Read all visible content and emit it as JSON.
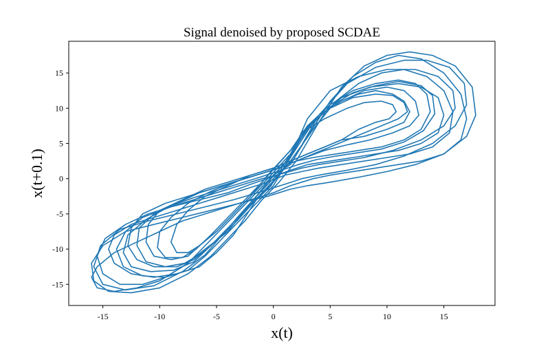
{
  "chart_data": {
    "type": "line",
    "title": "Signal denoised by proposed SCDAE",
    "xlabel": "x(t)",
    "ylabel": "x(t+0.1)",
    "xlim": [
      -18,
      19.5
    ],
    "ylim": [
      -18,
      19.5
    ],
    "xticks": [
      -15,
      -10,
      -5,
      0,
      5,
      10,
      15
    ],
    "yticks": [
      -15,
      -10,
      -5,
      0,
      5,
      10,
      15
    ],
    "xtick_labels": [
      "-15",
      "-10",
      "-5",
      "0",
      "5",
      "10",
      "15"
    ],
    "ytick_labels": [
      "-15",
      "-10",
      "-5",
      "0",
      "5",
      "10",
      "15"
    ],
    "grid": false,
    "color": "#1f77b4",
    "series": [
      {
        "x": [
          1.5,
          3,
          5,
          7,
          9,
          11,
          13,
          15,
          16.5,
          17,
          16.5,
          15,
          13,
          11,
          9,
          7,
          5,
          3.5,
          2.5,
          1.5,
          0,
          -2,
          -4,
          -6,
          -8,
          -10,
          -12,
          -14,
          -15.5,
          -16,
          -15.5,
          -14,
          -12,
          -10,
          -8,
          -6,
          -4,
          -3,
          -2,
          -1,
          0,
          1.5
        ],
        "y": [
          2,
          6,
          11,
          14.5,
          16.5,
          17.5,
          17,
          15,
          12,
          8.5,
          5.5,
          3.5,
          2.5,
          2,
          1.5,
          1,
          0.5,
          0,
          -0.5,
          -1,
          -2,
          -3,
          -4,
          -5,
          -6,
          -7.5,
          -9,
          -10.5,
          -12.5,
          -14,
          -15.5,
          -16,
          -15.5,
          -14.5,
          -12.5,
          -10,
          -7.5,
          -5.5,
          -3.5,
          -1.5,
          0.5,
          2
        ]
      },
      {
        "x": [
          1.5,
          3.5,
          5.5,
          7.5,
          9.5,
          11.5,
          13.5,
          15,
          15.8,
          15.5,
          14,
          12,
          10,
          8,
          6,
          4,
          2.5,
          1,
          -0.5,
          -2.5,
          -4.5,
          -6.5,
          -8.5,
          -10.5,
          -12.5,
          -14,
          -14.5,
          -14,
          -12.5,
          -10.5,
          -8.5,
          -6.5,
          -5,
          -3.5,
          -2.5,
          -1.5,
          0,
          1.5
        ],
        "y": [
          2.5,
          7,
          11,
          13.5,
          15,
          15.5,
          14.5,
          12.5,
          9.5,
          6.5,
          4.5,
          3.5,
          3,
          2.5,
          2,
          1.5,
          1,
          0.5,
          -0.5,
          -1.5,
          -2.5,
          -3.5,
          -4.5,
          -5.5,
          -6.5,
          -8,
          -10,
          -12,
          -13.5,
          -14,
          -13.5,
          -12.5,
          -10.5,
          -8,
          -5.5,
          -3,
          -0.5,
          2.5
        ]
      },
      {
        "x": [
          1.5,
          3,
          5,
          7,
          9,
          11,
          12.5,
          13.5,
          13.8,
          13,
          11.5,
          9.5,
          7.5,
          5.5,
          3.5,
          2,
          0.5,
          -1.5,
          -3.5,
          -5.5,
          -7.5,
          -9.5,
          -11.5,
          -12.5,
          -12.8,
          -12,
          -10.5,
          -8.5,
          -7,
          -5.5,
          -4,
          -2.5,
          -1,
          0.5,
          1.5
        ],
        "y": [
          3,
          7.5,
          10.5,
          12.5,
          13.5,
          14,
          13.5,
          12,
          9.5,
          7,
          5.5,
          4.5,
          4,
          3.5,
          3,
          2.5,
          1.5,
          0.5,
          -0.5,
          -1.5,
          -2.5,
          -3.5,
          -5,
          -7,
          -9.5,
          -11.5,
          -12.5,
          -12.5,
          -11.5,
          -9.5,
          -7,
          -4.5,
          -2,
          0.5,
          3
        ]
      },
      {
        "x": [
          1.5,
          3,
          4.5,
          6,
          7.5,
          9,
          10.5,
          11.5,
          12,
          11.5,
          10,
          8,
          6,
          4.5,
          3,
          1.5,
          0,
          -2,
          -4,
          -6,
          -8,
          -10,
          -11,
          -11.2,
          -10.5,
          -9,
          -7.5,
          -6.5,
          -5,
          -3.5,
          -2,
          -0.5,
          1.5
        ],
        "y": [
          3.5,
          7,
          9.5,
          11,
          12,
          12.5,
          12,
          11,
          9.5,
          8,
          7,
          6,
          5.5,
          4.5,
          3.5,
          2.5,
          1.5,
          0.5,
          -0.5,
          -1.5,
          -3,
          -4.5,
          -6.5,
          -9,
          -11,
          -11.5,
          -11,
          -9.5,
          -7.5,
          -5,
          -2.5,
          0,
          3.5
        ]
      },
      {
        "x": [
          1.5,
          3,
          4.5,
          6.5,
          8,
          9.5,
          10.5,
          10.8,
          10.2,
          9,
          7.5,
          6,
          4.5,
          3,
          1.5,
          0,
          -2,
          -4,
          -6,
          -7.5,
          -8.5,
          -9,
          -8.5,
          -7.5,
          -6.5,
          -5,
          -3.5,
          -2,
          -0.5,
          1.5
        ],
        "y": [
          4,
          7,
          8.5,
          10,
          10.8,
          11,
          10.5,
          9.5,
          8.5,
          8,
          7,
          5.5,
          4.5,
          3.5,
          2.5,
          1.5,
          0.5,
          -1,
          -2.5,
          -4.5,
          -6.5,
          -9,
          -10.5,
          -10.5,
          -9.5,
          -7.5,
          -5,
          -2.5,
          0.5,
          4
        ]
      },
      {
        "x": [
          2,
          4,
          6,
          8,
          10,
          12,
          14,
          16,
          17.5,
          17.8,
          17,
          15,
          12.5,
          10,
          7.5,
          5,
          3,
          1.5,
          -0.5,
          -3,
          -5.5,
          -8,
          -10.5,
          -13,
          -15,
          -16,
          -15.8,
          -14.5,
          -12.5,
          -10,
          -7.5,
          -5.5,
          -4,
          -2.5,
          -1,
          0.5,
          2
        ],
        "y": [
          2.5,
          8,
          13,
          16,
          17.5,
          18,
          17.5,
          16,
          13,
          9,
          6,
          3.5,
          2,
          1,
          0.2,
          -0.5,
          -1,
          -1.5,
          -2.5,
          -3.5,
          -4.5,
          -5.5,
          -6.5,
          -7.5,
          -9.5,
          -12,
          -14.5,
          -16,
          -16.2,
          -15.5,
          -13.5,
          -11,
          -8.5,
          -6,
          -3,
          -0.5,
          2.5
        ]
      },
      {
        "x": [
          1.5,
          3,
          5,
          7.5,
          10,
          12.5,
          14.5,
          15.8,
          16,
          15,
          13,
          10.5,
          8,
          6,
          4,
          2.5,
          1,
          -1,
          -3,
          -5,
          -7,
          -9,
          -11,
          -13,
          -14.8,
          -15.5,
          -15,
          -13.5,
          -11.5,
          -9.5,
          -7.5,
          -6,
          -4.5,
          -3,
          -1.5,
          0,
          1.5
        ],
        "y": [
          3,
          8.5,
          12.5,
          14.5,
          15.5,
          15.5,
          14.5,
          12.5,
          10,
          7.5,
          5.5,
          4,
          3,
          2.5,
          2,
          1.5,
          0.8,
          0,
          -1,
          -2,
          -3,
          -4,
          -5,
          -6.5,
          -8.5,
          -11,
          -13.5,
          -15,
          -15,
          -14,
          -12,
          -9.5,
          -7,
          -4.5,
          -2,
          0.5,
          3
        ]
      },
      {
        "x": [
          1.5,
          3.5,
          6,
          8.5,
          11,
          13,
          14.5,
          15,
          14.5,
          13,
          11,
          9,
          7,
          5,
          3,
          1.5,
          0,
          -2,
          -4,
          -6.5,
          -9,
          -11.5,
          -13,
          -13.8,
          -13.2,
          -11.5,
          -9.5,
          -7.5,
          -6,
          -4.5,
          -3,
          -1.5,
          0,
          1.5
        ],
        "y": [
          3,
          8,
          11.5,
          13,
          13.5,
          13,
          11.5,
          9,
          6.5,
          5,
          4,
          3.5,
          3,
          2.5,
          2,
          1.2,
          0.3,
          -0.8,
          -2,
          -3,
          -4,
          -5.5,
          -7.5,
          -10,
          -12.5,
          -13.8,
          -14,
          -13,
          -11,
          -8.5,
          -6,
          -3.5,
          -1,
          3
        ]
      },
      {
        "x": [
          1.5,
          2.5,
          4,
          6,
          8,
          10,
          11.5,
          12.5,
          12.8,
          12,
          10.5,
          8.5,
          6.5,
          4.5,
          2.8,
          1.2,
          -0.5,
          -2.5,
          -4.5,
          -6.5,
          -8.5,
          -10.5,
          -11.8,
          -12,
          -11.2,
          -9.5,
          -7.8,
          -6.2,
          -4.8,
          -3.2,
          -1.8,
          -0.2,
          1.5
        ],
        "y": [
          3.5,
          6.5,
          9,
          11,
          12.5,
          13,
          12.5,
          11,
          9,
          7.5,
          6.5,
          5.5,
          4.8,
          4,
          3,
          2,
          1,
          0,
          -1,
          -2,
          -3.5,
          -5,
          -7,
          -9.5,
          -11.8,
          -12.5,
          -12,
          -10.5,
          -8.5,
          -6,
          -3.5,
          -1,
          3.5
        ]
      },
      {
        "x": [
          1.5,
          3,
          5,
          7,
          9,
          10.5,
          11.5,
          11.8,
          11,
          9.5,
          8,
          6.5,
          5,
          3.5,
          2,
          0.5,
          -1.5,
          -3.5,
          -5.5,
          -7.5,
          -9,
          -10,
          -10.2,
          -9.5,
          -8,
          -6.8,
          -5.5,
          -4,
          -2.5,
          -1,
          1.5
        ],
        "y": [
          4,
          7.5,
          10,
          11.5,
          12,
          11.8,
          10.8,
          9.5,
          8.5,
          7.5,
          6.5,
          5.5,
          4.5,
          3.5,
          2.5,
          1.5,
          0.5,
          -0.5,
          -1.8,
          -3.5,
          -5.5,
          -7.5,
          -9.8,
          -11.2,
          -11.2,
          -10,
          -8,
          -5.5,
          -3,
          -0.5,
          4
        ]
      },
      {
        "x": [
          1.8,
          4,
          6.5,
          9,
          11.5,
          13.5,
          15.5,
          16.8,
          17,
          16,
          14,
          11.5,
          9,
          6.5,
          4,
          2.5,
          1,
          -1,
          -3.5,
          -6,
          -8.5,
          -11,
          -13.5,
          -15.2,
          -15.8,
          -15,
          -13,
          -10.5,
          -8,
          -6,
          -4.5,
          -3,
          -1.5,
          0,
          1.8
        ],
        "y": [
          2.8,
          9,
          13.5,
          15.8,
          16.8,
          16.8,
          15.8,
          13.5,
          10.5,
          7.5,
          5,
          3.2,
          2,
          1.2,
          0.5,
          0,
          -0.8,
          -1.8,
          -3,
          -4,
          -5,
          -6,
          -7.2,
          -9.5,
          -12.5,
          -15,
          -15.8,
          -15.2,
          -13.2,
          -10.8,
          -8,
          -5.2,
          -2.5,
          0,
          2.8
        ]
      },
      {
        "x": [
          1.5,
          3,
          5,
          7,
          9,
          11,
          13,
          14,
          14.2,
          13.2,
          11.5,
          9.5,
          7.5,
          5.5,
          3.8,
          2.2,
          0.7,
          -1.2,
          -3.2,
          -5.2,
          -7.2,
          -9.2,
          -11.2,
          -12.8,
          -13.2,
          -12.5,
          -10.8,
          -8.8,
          -7,
          -5.5,
          -4,
          -2.5,
          -1,
          1.5
        ],
        "y": [
          3.2,
          7.2,
          10.2,
          12.2,
          13.2,
          13.8,
          13.2,
          11.8,
          9.2,
          6.8,
          5.2,
          4.2,
          3.7,
          3.2,
          2.7,
          2,
          1.2,
          0.2,
          -0.8,
          -1.8,
          -2.8,
          -4,
          -5.8,
          -8,
          -10.5,
          -12.5,
          -13.2,
          -13,
          -11.8,
          -9.5,
          -7,
          -4.5,
          -1.5,
          3.2
        ]
      }
    ]
  }
}
